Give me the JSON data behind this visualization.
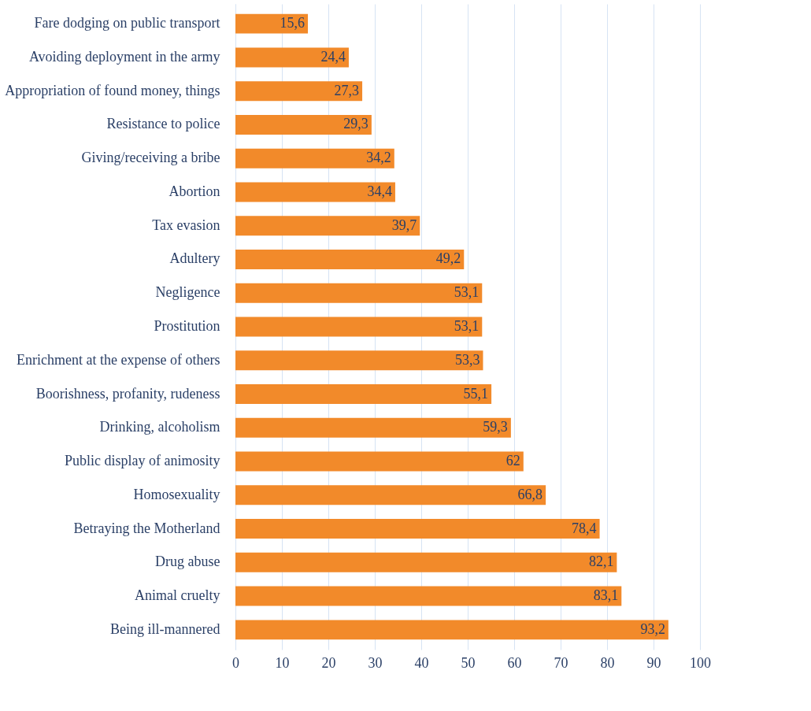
{
  "chart_data": {
    "type": "bar",
    "orientation": "horizontal",
    "categories": [
      "Fare dodging on public transport",
      "Avoiding deployment in the army",
      "Appropriation of found money, things",
      "Resistance to police",
      "Giving/receiving a bribe",
      "Abortion",
      "Tax evasion",
      "Adultery",
      "Negligence",
      "Prostitution",
      "Enrichment at the expense of others",
      "Boorishness, profanity, rudeness",
      "Drinking, alcoholism",
      "Public display of animosity",
      "Homosexuality",
      "Betraying the Motherland",
      "Drug abuse",
      "Animal cruelty",
      "Being ill-mannered"
    ],
    "values": [
      15.6,
      24.4,
      27.3,
      29.3,
      34.2,
      34.4,
      39.7,
      49.2,
      53.1,
      53.1,
      53.3,
      55.1,
      59.3,
      62,
      66.8,
      78.4,
      82.1,
      83.1,
      93.2
    ],
    "value_labels": [
      "15,6",
      "24,4",
      "27,3",
      "29,3",
      "34,2",
      "34,4",
      "39,7",
      "49,2",
      "53,1",
      "53,1",
      "53,3",
      "55,1",
      "59,3",
      "62",
      "66,8",
      "78,4",
      "82,1",
      "83,1",
      "93,2"
    ],
    "color": "#f28a2a",
    "xlim": [
      0,
      100
    ],
    "xticks": [
      0,
      10,
      20,
      30,
      40,
      50,
      60,
      70,
      80,
      90,
      100
    ],
    "grid": "x"
  }
}
